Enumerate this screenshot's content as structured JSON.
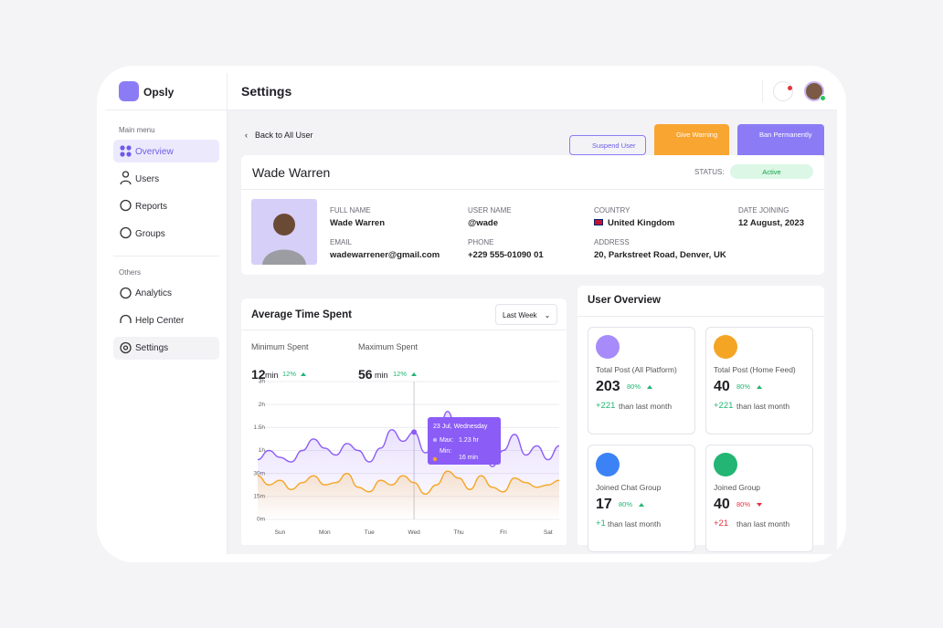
{
  "brand": "Opsly",
  "header": {
    "title": "Settings"
  },
  "sidebar": {
    "main_label": "Main menu",
    "main_items": [
      "Overview",
      "Users",
      "Reports",
      "Groups"
    ],
    "others_label": "Others",
    "others_items": [
      "Analytics",
      "Help Center",
      "Settings"
    ]
  },
  "actions": {
    "back": "Back to All User",
    "suspend": "Suspend User",
    "warning": "Give Warning",
    "ban": "Ban Permanently"
  },
  "profile": {
    "name": "Wade Warren",
    "status_label": "STATUS:",
    "status": "Active",
    "fields": [
      {
        "label": "FULL NAME",
        "value": "Wade Warren"
      },
      {
        "label": "USER NAME",
        "value": "@wade"
      },
      {
        "label": "COUNTRY",
        "value": "United Kingdom"
      },
      {
        "label": "DATE JOINING",
        "value": "12 August, 2023"
      },
      {
        "label": "EMAIL",
        "value": "wadewarrener@gmail.com"
      },
      {
        "label": "PHONE",
        "value": "+229 555-01090 01"
      },
      {
        "label": "ADDRESS",
        "value": "20, Parkstreet Road, Denver, UK"
      }
    ]
  },
  "time_panel": {
    "title": "Average Time Spent",
    "range": "Last Week",
    "stats": [
      {
        "label": "Minimum Spent",
        "value": "12",
        "unit": "min",
        "change": "12%"
      },
      {
        "label": "Maximum Spent",
        "value": "56",
        "unit": "min",
        "change": "12%"
      }
    ],
    "tooltip": {
      "date": "23 Jul, Wednesday",
      "max_label": "Max:",
      "max_value": "1.23 hr",
      "min_label": "Min:",
      "min_value": "16 min"
    }
  },
  "chart_data": {
    "type": "line",
    "x": [
      -0.5,
      -0.25,
      0,
      0.25,
      0.5,
      0.75,
      1,
      1.25,
      1.5,
      1.75,
      2,
      2.25,
      2.5,
      2.75,
      3,
      3.25,
      3.5,
      3.75,
      4,
      4.25,
      4.5,
      4.75,
      5,
      5.25,
      5.5,
      5.75,
      6,
      6.25
    ],
    "xlim": [
      -0.5,
      6.25
    ],
    "xticks": [
      {
        "value": 0,
        "label": "Sun"
      },
      {
        "value": 1,
        "label": "Mon"
      },
      {
        "value": 2,
        "label": "Tue"
      },
      {
        "value": 3,
        "label": "Wed"
      },
      {
        "value": 4,
        "label": "Thu"
      },
      {
        "value": 5,
        "label": "Fri"
      },
      {
        "value": 6,
        "label": "Sat"
      }
    ],
    "ylim": [
      0,
      6
    ],
    "yticks": [
      {
        "value": 0,
        "label": "0m"
      },
      {
        "value": 1,
        "label": "15m"
      },
      {
        "value": 2,
        "label": "30m"
      },
      {
        "value": 3,
        "label": "1h"
      },
      {
        "value": 4,
        "label": "1.5h"
      },
      {
        "value": 5,
        "label": "2h"
      },
      {
        "value": 6,
        "label": "3h"
      }
    ],
    "grid": true,
    "series": [
      {
        "name": "Max",
        "color": "#8b5cf6",
        "values": [
          2.6,
          3.0,
          2.7,
          2.5,
          3.0,
          3.5,
          3.1,
          2.8,
          3.3,
          3.0,
          2.5,
          3.1,
          3.9,
          3.4,
          3.8,
          2.9,
          3.3,
          4.7,
          3.5,
          2.6,
          3.4,
          2.3,
          3.0,
          3.7,
          2.8,
          3.2,
          2.6,
          3.2
        ]
      },
      {
        "name": "Min",
        "color": "#f5a524",
        "values": [
          1.9,
          1.5,
          1.7,
          1.3,
          1.6,
          1.9,
          1.5,
          1.6,
          2.0,
          1.4,
          1.2,
          1.7,
          1.5,
          1.9,
          1.6,
          1.1,
          1.5,
          2.1,
          1.8,
          1.3,
          1.9,
          1.4,
          1.2,
          1.8,
          1.6,
          1.4,
          1.5,
          1.7
        ]
      }
    ]
  },
  "overview": {
    "title": "User Overview",
    "cards": [
      {
        "title": "Total Post (All Platform)",
        "value": "203",
        "change": "80%",
        "delta": "+221",
        "note": "than last month"
      },
      {
        "title": "Total Post (Home Feed)",
        "value": "40",
        "change": "80%",
        "delta": "+221",
        "note": "than last month"
      },
      {
        "title": "Joined Chat Group",
        "value": "17",
        "change": "80%",
        "delta": "+1",
        "note": "than last month"
      },
      {
        "title": "Joined Group",
        "value": "40",
        "change": "80%",
        "delta": "+21",
        "note": "than last month"
      }
    ]
  }
}
